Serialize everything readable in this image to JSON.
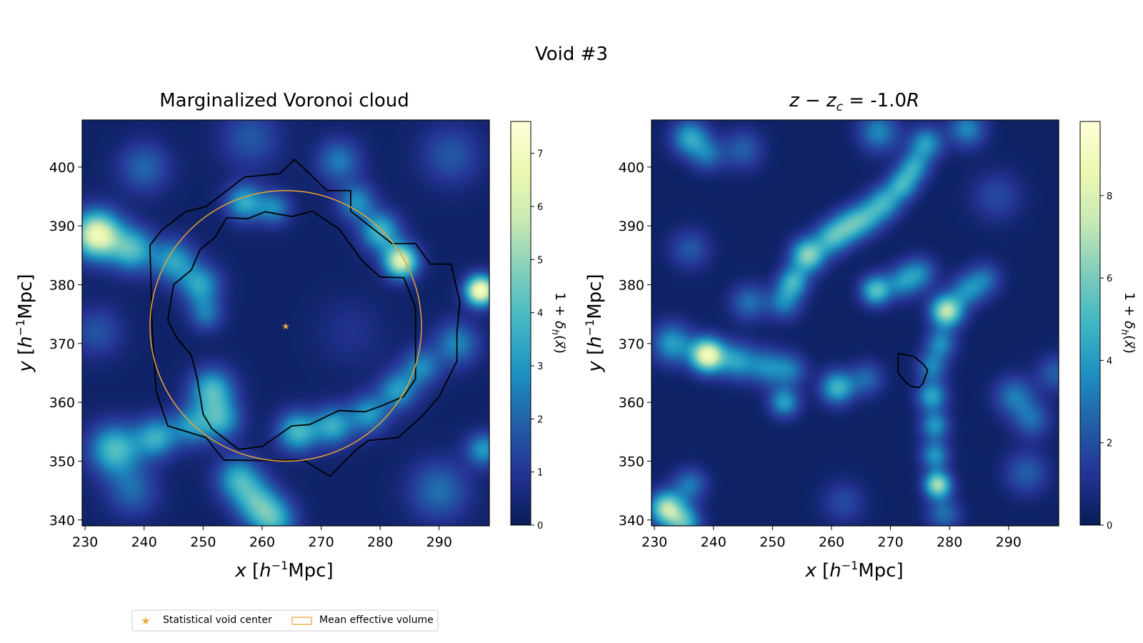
{
  "figure": {
    "title": "Void #3"
  },
  "chart_data": [
    {
      "type": "heatmap",
      "title": "Marginalized Voronoi cloud",
      "xlabel": "x [h⁻¹Mpc]",
      "ylabel": "y [h⁻¹Mpc]",
      "xlim": [
        229.5,
        298.5
      ],
      "ylim": [
        339,
        408
      ],
      "xticks": [
        230,
        240,
        250,
        260,
        270,
        280,
        290
      ],
      "yticks": [
        340,
        350,
        360,
        370,
        380,
        390,
        400
      ],
      "colorbar": {
        "label": "1 + δₕ(x⃗)",
        "range": [
          0,
          7.6
        ],
        "ticks": [
          0,
          1,
          2,
          3,
          4,
          5,
          6,
          7
        ],
        "colormap": "YlGnBu"
      },
      "void_center": [
        264,
        373
      ],
      "mean_effective_radius": 23,
      "outer_contour": [
        [
          265.5,
          401.3
        ],
        [
          263,
          398.9
        ],
        [
          257,
          398.3
        ],
        [
          250.5,
          393.3
        ],
        [
          247,
          392.4
        ],
        [
          243,
          389.3
        ],
        [
          241,
          386.7
        ],
        [
          241.3,
          374
        ],
        [
          242,
          362
        ],
        [
          244,
          356
        ],
        [
          250.5,
          354
        ],
        [
          253.5,
          350.2
        ],
        [
          260,
          350.1
        ],
        [
          267,
          350.2
        ],
        [
          271.5,
          347.4
        ],
        [
          276,
          352
        ],
        [
          278,
          353.5
        ],
        [
          283,
          354
        ],
        [
          287,
          357.5
        ],
        [
          290,
          361
        ],
        [
          293,
          367
        ],
        [
          293,
          372
        ],
        [
          293.5,
          377
        ],
        [
          292,
          383.5
        ],
        [
          288.5,
          383.5
        ],
        [
          286,
          387
        ],
        [
          282,
          387
        ],
        [
          275,
          392.5
        ],
        [
          275,
          396
        ],
        [
          271,
          396
        ],
        [
          265.5,
          401.3
        ]
      ],
      "inner_contour": [
        [
          254,
          391.4
        ],
        [
          257.5,
          391.2
        ],
        [
          260.5,
          392.4
        ],
        [
          265,
          391.6
        ],
        [
          268.5,
          392.5
        ],
        [
          273,
          389.5
        ],
        [
          277,
          384
        ],
        [
          280,
          381.3
        ],
        [
          284,
          381.2
        ],
        [
          286,
          376
        ],
        [
          286,
          364
        ],
        [
          284,
          361
        ],
        [
          280.5,
          359.5
        ],
        [
          277.5,
          358.4
        ],
        [
          273,
          358.6
        ],
        [
          268,
          356.2
        ],
        [
          265,
          356
        ],
        [
          260,
          352.5
        ],
        [
          256,
          352
        ],
        [
          251.5,
          355.5
        ],
        [
          250,
          358
        ],
        [
          249,
          364
        ],
        [
          248,
          368
        ],
        [
          245.5,
          371
        ],
        [
          244,
          374
        ],
        [
          245,
          380
        ],
        [
          248,
          382.5
        ],
        [
          249.5,
          386
        ],
        [
          252,
          388
        ],
        [
          254,
          391.4
        ]
      ],
      "blobs": [
        {
          "x": 232,
          "y": 388.5,
          "s": 2.8,
          "a": 6.5
        },
        {
          "x": 238,
          "y": 386,
          "s": 2.6,
          "a": 3.6
        },
        {
          "x": 245,
          "y": 384,
          "s": 2.5,
          "a": 3.0
        },
        {
          "x": 249.5,
          "y": 380,
          "s": 2.4,
          "a": 3.0
        },
        {
          "x": 250.5,
          "y": 375,
          "s": 2.0,
          "a": 2.0
        },
        {
          "x": 251.5,
          "y": 362,
          "s": 2.6,
          "a": 3.6
        },
        {
          "x": 253,
          "y": 357,
          "s": 2.4,
          "a": 3.0
        },
        {
          "x": 248,
          "y": 356,
          "s": 2.4,
          "a": 2.6
        },
        {
          "x": 242,
          "y": 354,
          "s": 2.4,
          "a": 3.2
        },
        {
          "x": 235,
          "y": 352,
          "s": 3.0,
          "a": 3.8
        },
        {
          "x": 256,
          "y": 347,
          "s": 2.6,
          "a": 3.2
        },
        {
          "x": 259,
          "y": 343,
          "s": 2.6,
          "a": 3.0
        },
        {
          "x": 262,
          "y": 340,
          "s": 2.6,
          "a": 3.2
        },
        {
          "x": 266,
          "y": 355,
          "s": 2.4,
          "a": 3.6
        },
        {
          "x": 272,
          "y": 356,
          "s": 2.3,
          "a": 3.2
        },
        {
          "x": 278,
          "y": 358,
          "s": 2.3,
          "a": 2.8
        },
        {
          "x": 283,
          "y": 362,
          "s": 2.3,
          "a": 2.8
        },
        {
          "x": 287,
          "y": 366,
          "s": 2.3,
          "a": 2.4
        },
        {
          "x": 293,
          "y": 370,
          "s": 2.6,
          "a": 2.4
        },
        {
          "x": 297,
          "y": 379,
          "s": 1.8,
          "a": 7.0
        },
        {
          "x": 297.5,
          "y": 352,
          "s": 2.0,
          "a": 2.8
        },
        {
          "x": 283.5,
          "y": 384,
          "s": 2.0,
          "a": 6.0
        },
        {
          "x": 280,
          "y": 389,
          "s": 2.3,
          "a": 3.6
        },
        {
          "x": 276,
          "y": 394,
          "s": 2.2,
          "a": 2.6
        },
        {
          "x": 273,
          "y": 401,
          "s": 2.6,
          "a": 2.2
        },
        {
          "x": 257,
          "y": 394,
          "s": 2.2,
          "a": 3.2
        },
        {
          "x": 262,
          "y": 393,
          "s": 2.0,
          "a": 2.4
        },
        {
          "x": 240,
          "y": 400,
          "s": 3.0,
          "a": 1.8
        },
        {
          "x": 238,
          "y": 345,
          "s": 3.0,
          "a": 1.8
        },
        {
          "x": 290,
          "y": 345,
          "s": 3.5,
          "a": 2.0
        },
        {
          "x": 258,
          "y": 405,
          "s": 3.5,
          "a": 1.5
        },
        {
          "x": 292,
          "y": 402,
          "s": 3.5,
          "a": 1.5
        },
        {
          "x": 232,
          "y": 372,
          "s": 3.0,
          "a": 1.4
        },
        {
          "x": 275,
          "y": 372,
          "s": 4.0,
          "a": 0.6
        }
      ]
    },
    {
      "type": "heatmap",
      "title": "z − zᶜ = -1.0R",
      "xlabel": "x [h⁻¹Mpc]",
      "ylabel": "y [h⁻¹Mpc]",
      "xlim": [
        229.5,
        298.5
      ],
      "ylim": [
        339,
        408
      ],
      "xticks": [
        230,
        240,
        250,
        260,
        270,
        280,
        290
      ],
      "yticks": [
        340,
        350,
        360,
        370,
        380,
        390,
        400
      ],
      "colorbar": {
        "label": "1 + δₕ(x⃗)",
        "range": [
          0,
          9.8
        ],
        "ticks": [
          0,
          2,
          4,
          6,
          8
        ],
        "colormap": "YlGnBu"
      },
      "contour": [
        [
          271.3,
          368.3
        ],
        [
          274,
          367.8
        ],
        [
          275.5,
          366.5
        ],
        [
          276.3,
          365.5
        ],
        [
          275.5,
          363.2
        ],
        [
          274.8,
          362.5
        ],
        [
          273.5,
          362.7
        ],
        [
          272.5,
          363.5
        ],
        [
          271.3,
          365
        ],
        [
          271.3,
          368.3
        ]
      ],
      "blobs": [
        {
          "x": 233,
          "y": 370,
          "s": 2.4,
          "a": 3.8
        },
        {
          "x": 239,
          "y": 368,
          "s": 2.0,
          "a": 8.5
        },
        {
          "x": 244,
          "y": 367,
          "s": 2.2,
          "a": 3.6
        },
        {
          "x": 249,
          "y": 366,
          "s": 2.2,
          "a": 3.0
        },
        {
          "x": 253,
          "y": 365.5,
          "s": 2.0,
          "a": 2.6
        },
        {
          "x": 252,
          "y": 360,
          "s": 1.8,
          "a": 3.8
        },
        {
          "x": 261,
          "y": 362.5,
          "s": 2.0,
          "a": 4.6
        },
        {
          "x": 266,
          "y": 364,
          "s": 2.0,
          "a": 2.4
        },
        {
          "x": 252,
          "y": 377,
          "s": 2.0,
          "a": 3.0
        },
        {
          "x": 253.5,
          "y": 380.5,
          "s": 1.8,
          "a": 4.2
        },
        {
          "x": 256,
          "y": 385,
          "s": 2.0,
          "a": 6.0
        },
        {
          "x": 260,
          "y": 388,
          "s": 2.0,
          "a": 4.2
        },
        {
          "x": 263,
          "y": 390,
          "s": 2.0,
          "a": 4.0
        },
        {
          "x": 266,
          "y": 391.5,
          "s": 2.0,
          "a": 3.6
        },
        {
          "x": 269,
          "y": 394,
          "s": 2.0,
          "a": 4.0
        },
        {
          "x": 272,
          "y": 397,
          "s": 1.8,
          "a": 4.0
        },
        {
          "x": 274,
          "y": 400,
          "s": 1.8,
          "a": 3.6
        },
        {
          "x": 276,
          "y": 404,
          "s": 2.0,
          "a": 3.8
        },
        {
          "x": 283,
          "y": 406.5,
          "s": 2.2,
          "a": 3.2
        },
        {
          "x": 268,
          "y": 406,
          "s": 2.4,
          "a": 3.2
        },
        {
          "x": 236,
          "y": 405,
          "s": 2.2,
          "a": 4.0
        },
        {
          "x": 239,
          "y": 402,
          "s": 2.0,
          "a": 2.4
        },
        {
          "x": 245,
          "y": 403,
          "s": 2.4,
          "a": 2.2
        },
        {
          "x": 246,
          "y": 377,
          "s": 2.2,
          "a": 2.6
        },
        {
          "x": 236,
          "y": 386,
          "s": 2.4,
          "a": 2.0
        },
        {
          "x": 267.5,
          "y": 379,
          "s": 1.8,
          "a": 5.0
        },
        {
          "x": 272,
          "y": 380.5,
          "s": 2.0,
          "a": 3.0
        },
        {
          "x": 275,
          "y": 382,
          "s": 2.0,
          "a": 2.8
        },
        {
          "x": 279.5,
          "y": 375.5,
          "s": 1.9,
          "a": 7.0
        },
        {
          "x": 283,
          "y": 379,
          "s": 2.0,
          "a": 3.0
        },
        {
          "x": 286,
          "y": 381,
          "s": 2.0,
          "a": 2.4
        },
        {
          "x": 278.5,
          "y": 370,
          "s": 1.8,
          "a": 3.2
        },
        {
          "x": 277,
          "y": 366,
          "s": 1.8,
          "a": 3.0
        },
        {
          "x": 277,
          "y": 361,
          "s": 1.8,
          "a": 4.0
        },
        {
          "x": 277.5,
          "y": 356,
          "s": 1.7,
          "a": 3.6
        },
        {
          "x": 277.5,
          "y": 351,
          "s": 1.7,
          "a": 3.6
        },
        {
          "x": 278,
          "y": 346,
          "s": 1.6,
          "a": 6.5
        },
        {
          "x": 279,
          "y": 341,
          "s": 2.0,
          "a": 2.6
        },
        {
          "x": 291,
          "y": 361,
          "s": 2.4,
          "a": 2.8
        },
        {
          "x": 294,
          "y": 357,
          "s": 2.2,
          "a": 2.4
        },
        {
          "x": 293,
          "y": 348,
          "s": 2.6,
          "a": 2.2
        },
        {
          "x": 232,
          "y": 342,
          "s": 2.0,
          "a": 6.5
        },
        {
          "x": 235,
          "y": 339.5,
          "s": 2.0,
          "a": 4.5
        },
        {
          "x": 236,
          "y": 346,
          "s": 2.0,
          "a": 2.8
        },
        {
          "x": 262,
          "y": 343,
          "s": 2.6,
          "a": 1.6
        },
        {
          "x": 288,
          "y": 395,
          "s": 3.0,
          "a": 1.6
        },
        {
          "x": 298,
          "y": 365,
          "s": 2.2,
          "a": 2.2
        }
      ]
    }
  ],
  "legend": {
    "items": [
      {
        "label": "Statistical void center",
        "marker": "star",
        "color": "#e8a433"
      },
      {
        "label": "Mean effective volume",
        "marker": "patch",
        "color": "#e8a433"
      }
    ]
  }
}
